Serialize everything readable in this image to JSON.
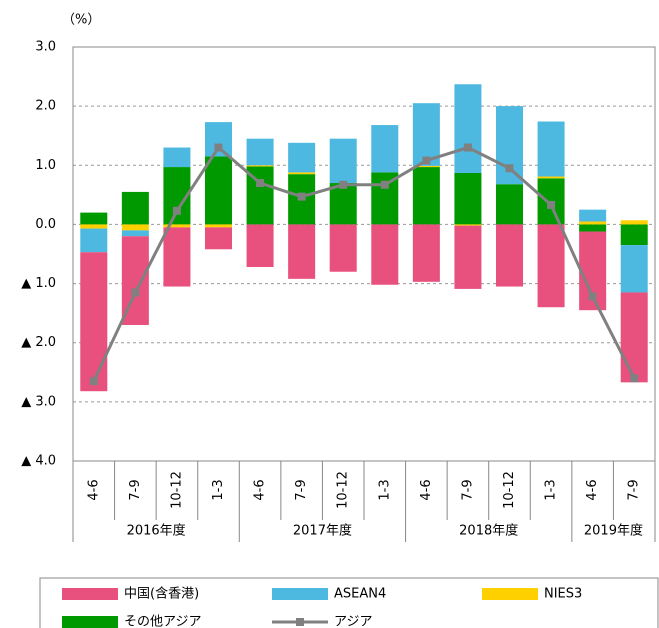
{
  "chart_data": {
    "type": "bar",
    "unit_label": "（%）",
    "categories": [
      "4-6",
      "7-9",
      "10-12",
      "1-3",
      "4-6",
      "7-9",
      "10-12",
      "1-3",
      "4-6",
      "7-9",
      "10-12",
      "1-3",
      "4-6",
      "7-9"
    ],
    "groups": [
      "2016年度",
      "2017年度",
      "2018年度",
      "2019年度"
    ],
    "stacked": true,
    "series": [
      {
        "name": "中国(含香港)",
        "color": "#e8507e",
        "values": [
          -2.35,
          -1.5,
          -1.0,
          -0.37,
          -0.72,
          -0.92,
          -0.8,
          -1.02,
          -0.97,
          -1.07,
          -1.05,
          -1.4,
          -1.33,
          -1.52
        ]
      },
      {
        "name": "ASEAN4",
        "color": "#4db8e0",
        "values": [
          -0.4,
          -0.1,
          0.33,
          0.58,
          0.45,
          0.5,
          0.75,
          0.8,
          1.06,
          1.5,
          1.32,
          0.93,
          0.2,
          -0.8
        ]
      },
      {
        "name": "NIES3",
        "color": "#ffd000",
        "values": [
          -0.07,
          -0.1,
          -0.05,
          -0.05,
          0.02,
          0.03,
          0.0,
          0.0,
          0.02,
          -0.02,
          0.0,
          0.03,
          0.05,
          0.07
        ]
      },
      {
        "name": "その他アジア",
        "color": "#009a00",
        "values": [
          0.2,
          0.55,
          0.97,
          1.15,
          0.98,
          0.85,
          0.7,
          0.88,
          0.97,
          0.87,
          0.68,
          0.78,
          -0.12,
          -0.35
        ]
      },
      {
        "name": "アジア",
        "color": "#808080",
        "type": "line",
        "values": [
          -2.65,
          -1.15,
          0.23,
          1.3,
          0.7,
          0.47,
          0.67,
          0.67,
          1.08,
          1.3,
          0.95,
          0.33,
          -1.22,
          -2.6
        ]
      }
    ],
    "ylim": [
      -4,
      3
    ],
    "yticks": [
      {
        "value": 3,
        "label": "3.0"
      },
      {
        "value": 2,
        "label": "2.0"
      },
      {
        "value": 1,
        "label": "1.0"
      },
      {
        "value": 0,
        "label": "0.0"
      },
      {
        "value": -1,
        "label": "▲ 1.0"
      },
      {
        "value": -2,
        "label": "▲ 2.0"
      },
      {
        "value": -3,
        "label": "▲ 3.0"
      },
      {
        "value": -4,
        "label": "▲ 4.0"
      }
    ],
    "grid": true,
    "legend": "bottom"
  }
}
